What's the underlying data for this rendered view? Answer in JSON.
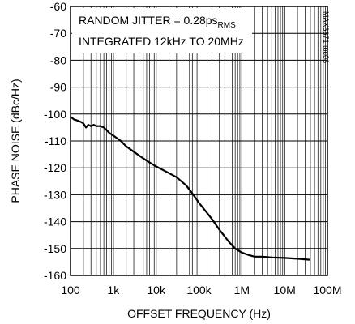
{
  "chart_data": {
    "type": "line",
    "title": "",
    "xlabel": "OFFSET FREQUENCY (Hz)",
    "ylabel": "PHASE NOISE (dBc/Hz)",
    "xscale": "log",
    "xlim": [
      100,
      100000000
    ],
    "ylim": [
      -160,
      -60
    ],
    "x_tick_labels": [
      "100",
      "1k",
      "10k",
      "100k",
      "1M",
      "10M",
      "100M"
    ],
    "y_tick_labels": [
      "-60",
      "-70",
      "-80",
      "-90",
      "-100",
      "-110",
      "-120",
      "-130",
      "-140",
      "-150",
      "-160"
    ],
    "grid": true,
    "annotation_line1": "RANDOM JITTER = 0.28ps",
    "annotation_sub": "RMS",
    "annotation_line2": "INTEGRATED 12kHz TO 20MHz",
    "figure_code": "MAX3671 toc03",
    "series": [
      {
        "x": [
          100,
          120,
          150,
          180,
          200,
          230,
          260,
          300,
          350,
          400,
          500,
          600,
          700,
          800,
          1000,
          1500,
          2000,
          3000,
          5000,
          7000,
          10000,
          20000,
          30000,
          50000,
          70000,
          100000,
          200000,
          300000,
          500000,
          700000,
          1000000,
          1500000,
          2000000,
          3000000,
          5000000,
          10000000,
          20000000,
          40000000
        ],
        "y": [
          -101,
          -102,
          -102.5,
          -103,
          -103.5,
          -105,
          -104,
          -104.5,
          -104,
          -104.5,
          -104.5,
          -105,
          -106,
          -107,
          -108,
          -110,
          -112,
          -114,
          -116.5,
          -118,
          -119.5,
          -122,
          -123.5,
          -126.5,
          -129.5,
          -133,
          -139,
          -143,
          -147.5,
          -150,
          -151.5,
          -152.5,
          -153,
          -153,
          -153.3,
          -153.5,
          -153.8,
          -154.2
        ]
      }
    ],
    "colors": {
      "line": "#000000",
      "grid": "#000000",
      "background": "#ffffff"
    }
  }
}
